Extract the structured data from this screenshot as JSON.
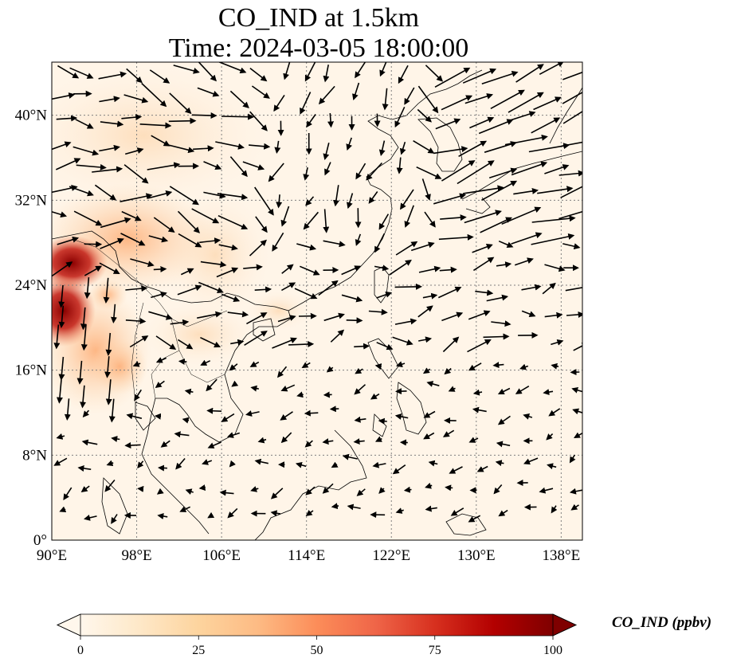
{
  "title": {
    "line1": "CO_IND at 1.5km",
    "line2": "Time: 2024-03-05 18:00:00"
  },
  "map": {
    "type": "filled-contour map with wind vectors",
    "extent": {
      "lon": [
        90,
        140
      ],
      "lat": [
        0,
        45
      ]
    },
    "gridlines": "dotted",
    "lon_tick_labels": [
      "90°E",
      "98°E",
      "106°E",
      "114°E",
      "122°E",
      "130°E",
      "138°E"
    ],
    "lon_ticks": [
      90,
      98,
      106,
      114,
      122,
      130,
      138
    ],
    "lat_tick_labels": [
      "0°",
      "8°N",
      "16°N",
      "24°N",
      "32°N",
      "40°N"
    ],
    "lat_ticks": [
      0,
      8,
      16,
      24,
      32,
      40
    ]
  },
  "colorbar": {
    "label": "CO_IND (ppbv)",
    "tick_labels": [
      "0",
      "25",
      "50",
      "75",
      "100"
    ],
    "range": [
      0,
      100
    ],
    "extend": "both",
    "colormap": "OrRd",
    "colors": [
      "#fff7ec",
      "#fee8c8",
      "#fdd49e",
      "#fdbb84",
      "#fc8d59",
      "#ef6548",
      "#d7301f",
      "#b30000",
      "#7f0000"
    ]
  },
  "colors": {
    "background_field": "#fff5e8",
    "coastline": "#000000",
    "gridline": "#808080",
    "vectors": "#000000"
  }
}
